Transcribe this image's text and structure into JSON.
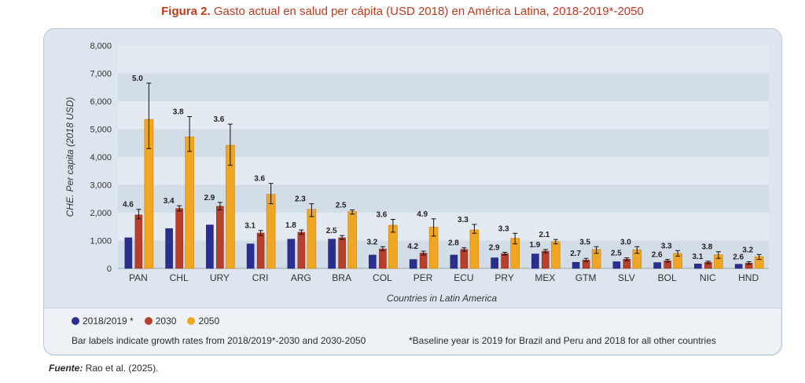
{
  "figure": {
    "title_bold": "Figura 2.",
    "title_rest": "Gasto actual en salud per cápita (USD 2018) en América Latina, 2018-2019*-2050"
  },
  "legend": {
    "items": [
      {
        "label": "2018/2019 *",
        "color": "#2a2f8f"
      },
      {
        "label": "2030",
        "color": "#b8402b"
      },
      {
        "label": "2050",
        "color": "#f0a623"
      }
    ],
    "note_left": "Bar labels indicate growth rates from 2018/2019*-2030 and 2030-2050",
    "note_right": "*Baseline year is 2019 for Brazil and Peru and 2018 for all other countries"
  },
  "source": {
    "label": "Fuente:",
    "text": "Rao et al. (2025)."
  },
  "chart_data": {
    "type": "bar",
    "xlabel": "Countries in Latin America",
    "ylabel": "CHE. Per capita (2018 USD)",
    "ylim": [
      0,
      8000
    ],
    "yticks": [
      "0",
      "1,000",
      "2,000",
      "3,000",
      "4,000",
      "5,000",
      "6,000",
      "7,000",
      "8,000"
    ],
    "grid": "horizontal bands",
    "categories": [
      "PAN",
      "CHL",
      "URY",
      "CRI",
      "ARG",
      "BRA",
      "COL",
      "PER",
      "ECU",
      "PRY",
      "MEX",
      "GTM",
      "SLV",
      "BOL",
      "NIC",
      "HND"
    ],
    "series": [
      {
        "name": "2018/2019 *",
        "color": "#2a2f8f",
        "values": [
          1100,
          1430,
          1560,
          880,
          1050,
          1050,
          480,
          320,
          480,
          380,
          520,
          220,
          240,
          210,
          160,
          150
        ]
      },
      {
        "name": "2030",
        "color": "#b8402b",
        "values": [
          1920,
          2150,
          2230,
          1270,
          1300,
          1100,
          700,
          550,
          680,
          530,
          620,
          300,
          330,
          270,
          220,
          190
        ],
        "err_low": [
          1780,
          2060,
          2100,
          1180,
          1220,
          1040,
          640,
          480,
          620,
          480,
          560,
          250,
          280,
          230,
          170,
          150
        ],
        "err_high": [
          2120,
          2250,
          2370,
          1360,
          1380,
          1180,
          780,
          620,
          740,
          580,
          680,
          360,
          380,
          320,
          260,
          240
        ],
        "labels": [
          "4.6",
          "3.4",
          "2.9",
          "3.1",
          "1.8",
          "2.5",
          "3.2",
          "4.2",
          "2.8",
          "2.9",
          "1.9",
          "2.7",
          "2.5",
          "2.6",
          "3.1",
          "2.6"
        ]
      },
      {
        "name": "2050",
        "color": "#f0a623",
        "values": [
          5350,
          4720,
          4420,
          2660,
          2120,
          2040,
          1550,
          1480,
          1380,
          1080,
          960,
          680,
          670,
          540,
          490,
          420
        ],
        "err_low": [
          4300,
          4200,
          3700,
          2320,
          1860,
          1950,
          1300,
          1160,
          1260,
          880,
          880,
          540,
          540,
          440,
          360,
          320
        ],
        "err_high": [
          6650,
          5450,
          5180,
          3050,
          2320,
          2100,
          1760,
          1780,
          1580,
          1260,
          1040,
          780,
          780,
          640,
          600,
          500
        ],
        "labels": [
          "5.0",
          "3.8",
          "3.6",
          "3.6",
          "2.3",
          "2.5",
          "3.6",
          "4.9",
          "3.3",
          "3.3",
          "2.1",
          "3.5",
          "3.0",
          "3.3",
          "3.8",
          "3.2"
        ]
      }
    ]
  }
}
